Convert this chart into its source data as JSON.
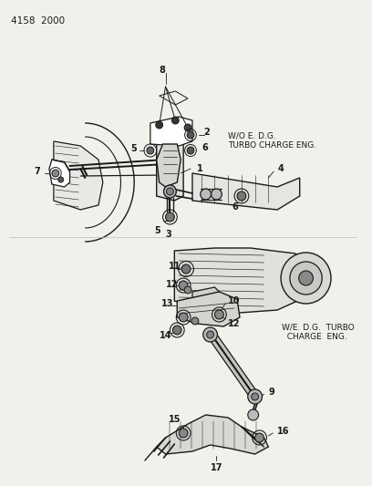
{
  "bg_color": "#f2f0eb",
  "title_text": "4158  2000",
  "line_color": "#1a1a1a",
  "text_color": "#1a1a1a",
  "diagram1_label": "W/O E. D.G.\nTURBO CHARGE ENG.",
  "diagram2_label": "W/E. D.G.  TURBO\n  CHARGE  ENG.",
  "fig_width": 4.08,
  "fig_height": 5.33,
  "dpi": 100
}
